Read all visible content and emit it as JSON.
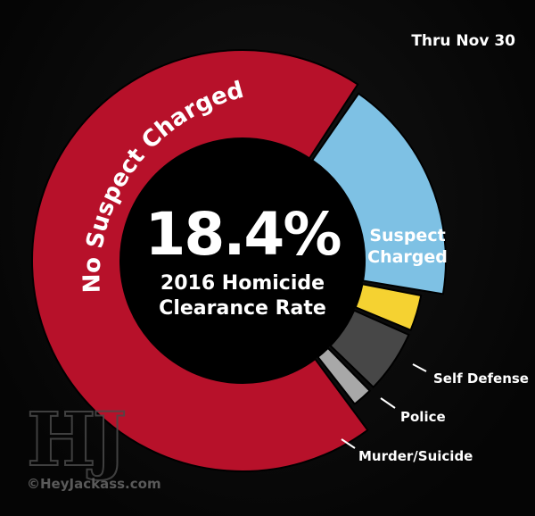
{
  "header": {
    "period": "Thru Nov 30"
  },
  "center": {
    "rate": "18.4%",
    "caption_line1": "2016 Homicide",
    "caption_line2": "Clearance Rate"
  },
  "chart_data": {
    "type": "pie",
    "title": "2016 Homicide Clearance Rate",
    "slices": [
      {
        "label": "No Suspect Charged",
        "value": 69.8,
        "color": "#b7112a"
      },
      {
        "label": "Suspect Charged",
        "value": 18.4,
        "color": "#7ec1e4"
      },
      {
        "label": "Self Defense",
        "value": 3.6,
        "color": "#f5d231"
      },
      {
        "label": "Police",
        "value": 6.0,
        "color": "#474747"
      },
      {
        "label": "Murder/Suicide",
        "value": 2.2,
        "color": "#a8a8a8"
      }
    ]
  },
  "labels": {
    "no_suspect": "No Suspect Charged",
    "suspect_line1": "Suspect",
    "suspect_line2": "Charged",
    "self_defense": "Self Defense",
    "police": "Police",
    "murder_suicide": "Murder/Suicide"
  },
  "branding": {
    "watermark": "HJ",
    "copyright": "©HeyJackass.com"
  }
}
